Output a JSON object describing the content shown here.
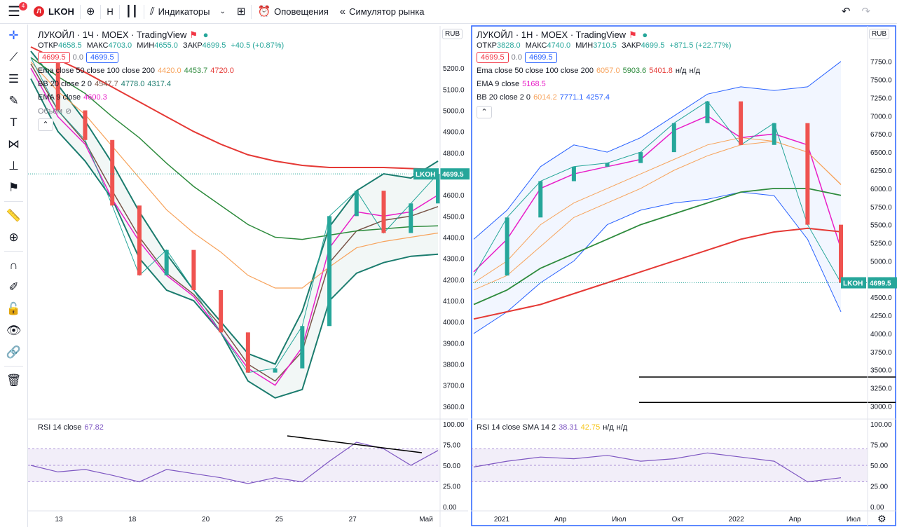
{
  "toolbar": {
    "badge": "4",
    "symbol": "LKOH",
    "symbol_logo": "Л",
    "interval": "Н",
    "indicators": "Индикаторы",
    "alerts": "Оповещения",
    "replay": "Симулятор рынка",
    "icons": [
      "burger-icon",
      "plus-circle-icon",
      "candles-icon",
      "indicators-icon",
      "grid-icon",
      "alarm-icon",
      "replay-icon",
      "undo-icon",
      "redo-icon"
    ]
  },
  "left_tools": [
    "crosshair-icon",
    "trendline-icon",
    "fib-icon",
    "brush-icon",
    "text-icon",
    "pattern-icon",
    "measure-icon",
    "flag-icon",
    "ruler-icon",
    "zoom-icon",
    "magnet-icon",
    "lock-drawings-icon",
    "lock-icon",
    "eye-icon",
    "link-icon",
    "trash-icon"
  ],
  "chart_data": [
    {
      "type": "line",
      "title": "ЛУКОЙЛ · 1Ч · MOEX · TradingView",
      "currency": "RUB",
      "ohlc": {
        "o_label": "ОТКР",
        "o": "4658.5",
        "h_label": "МАКС",
        "h": "4703.0",
        "l_label": "МИН",
        "l": "4655.0",
        "c_label": "ЗАКР",
        "c": "4699.5",
        "chg": "+40.5 (+0.87%)"
      },
      "bid": "4699.5",
      "spread": "0.0",
      "ask": "4699.5",
      "indicators": [
        {
          "label": "Ema close 50 close 100 close 200",
          "values": [
            "4420.0",
            "4453.7",
            "4720.0"
          ],
          "colors": [
            "#f7a35c",
            "#2e8b3d",
            "#e53935"
          ]
        },
        {
          "label": "BB 20 close 2 0",
          "values": [
            "4547.7",
            "4778.0",
            "4317.4"
          ],
          "colors": [
            "#795548",
            "#1b7c6e",
            "#1b7c6e"
          ]
        },
        {
          "label": "EMA 9 close",
          "values": [
            "4600.3"
          ],
          "colors": [
            "#e91ec8"
          ]
        }
      ],
      "volume_label": "Объём",
      "ticker": "LKOH",
      "last": "4699.5",
      "ylim": [
        3550,
        5300
      ],
      "y_ticks": [
        "5200.0",
        "5100.0",
        "5000.0",
        "4900.0",
        "4800.0",
        "4700.0",
        "4600.0",
        "4500.0",
        "4400.0",
        "4300.0",
        "4200.0",
        "4100.0",
        "4000.0",
        "3900.0",
        "3800.0",
        "3700.0",
        "3600.0"
      ],
      "x_ticks": [
        "13",
        "18",
        "20",
        "25",
        "27",
        "Май"
      ],
      "series": [
        {
          "name": "BB upper",
          "values": [
            5280,
            5120,
            4950,
            4750,
            4520,
            4320,
            4150,
            4000,
            3850,
            3800,
            4050,
            4450,
            4620,
            4700,
            4680,
            4760
          ]
        },
        {
          "name": "BB lower",
          "values": [
            5150,
            4900,
            4760,
            4580,
            4300,
            4150,
            4100,
            3950,
            3720,
            3640,
            3680,
            4100,
            4230,
            4280,
            4310,
            4320
          ]
        },
        {
          "name": "BB basis",
          "values": [
            5220,
            5000,
            4850,
            4620,
            4400,
            4230,
            4130,
            3980,
            3800,
            3720,
            3860,
            4280,
            4430,
            4480,
            4500,
            4545
          ]
        },
        {
          "name": "EMA 9",
          "values": [
            5200,
            4970,
            4840,
            4580,
            4380,
            4220,
            4120,
            3950,
            3780,
            3700,
            3880,
            4350,
            4520,
            4500,
            4520,
            4600
          ]
        },
        {
          "name": "EMA 50",
          "values": [
            5230,
            5090,
            4980,
            4830,
            4680,
            4530,
            4420,
            4330,
            4220,
            4160,
            4160,
            4260,
            4350,
            4380,
            4400,
            4420
          ]
        },
        {
          "name": "EMA 100",
          "values": [
            5250,
            5160,
            5080,
            4970,
            4870,
            4750,
            4640,
            4550,
            4460,
            4400,
            4390,
            4410,
            4430,
            4440,
            4450,
            4454
          ]
        },
        {
          "name": "EMA 200",
          "values": [
            5300,
            5240,
            5180,
            5110,
            5040,
            4970,
            4900,
            4840,
            4790,
            4760,
            4740,
            4730,
            4730,
            4730,
            4725,
            4720
          ]
        },
        {
          "name": "Price",
          "values": [
            5250,
            5000,
            4860,
            4550,
            4220,
            4340,
            4150,
            3950,
            3760,
            3780,
            3980,
            4500,
            4620,
            4420,
            4560,
            4700
          ]
        }
      ],
      "rsi": {
        "label": "RSI 14 close",
        "value": "67.82",
        "ylim": [
          0,
          100
        ],
        "ticks": [
          "100.00",
          "75.00",
          "50.00",
          "25.00",
          "0.00"
        ],
        "values": [
          50,
          42,
          45,
          38,
          30,
          45,
          40,
          35,
          28,
          35,
          30,
          55,
          78,
          70,
          50,
          68
        ]
      }
    },
    {
      "type": "line",
      "title": "ЛУКОЙЛ · 1Н · MOEX · TradingView",
      "currency": "RUB",
      "ohlc": {
        "o_label": "ОТКР",
        "o": "3828.0",
        "h_label": "МАКС",
        "h": "4740.0",
        "l_label": "МИН",
        "l": "3710.5",
        "c_label": "ЗАКР",
        "c": "4699.5",
        "chg": "+871.5 (+22.77%)"
      },
      "bid": "4699.5",
      "spread": "0.0",
      "ask": "4699.5",
      "indicators": [
        {
          "label": "Ema close 50 close 100 close 200",
          "values": [
            "6057.0",
            "5903.6",
            "5401.8",
            "н/д",
            "н/д"
          ],
          "colors": [
            "#f7a35c",
            "#2e8b3d",
            "#e53935",
            "#131722",
            "#131722"
          ]
        },
        {
          "label": "EMA 9 close",
          "values": [
            "5168.5"
          ],
          "colors": [
            "#e91ec8"
          ]
        },
        {
          "label": "BB 20 close 2 0",
          "values": [
            "6014.2",
            "7771.1",
            "4257.4"
          ],
          "colors": [
            "#f7a35c",
            "#2962ff",
            "#2962ff"
          ]
        }
      ],
      "ticker": "LKOH",
      "last": "4699.5",
      "ylim": [
        2850,
        7950
      ],
      "y_ticks": [
        "7750.0",
        "7500.0",
        "7250.0",
        "7000.0",
        "6750.0",
        "6500.0",
        "6250.0",
        "6000.0",
        "5750.0",
        "5500.0",
        "5250.0",
        "5000.0",
        "4750.0",
        "4500.0",
        "4250.0",
        "4000.0",
        "3750.0",
        "3500.0",
        "3250.0",
        "3000.0"
      ],
      "x_ticks": [
        "2021",
        "Апр",
        "Июл",
        "Окт",
        "2022",
        "Апр",
        "Июл"
      ],
      "series": [
        {
          "name": "BB upper",
          "values": [
            5300,
            5700,
            6300,
            6600,
            6500,
            6700,
            7000,
            7300,
            7400,
            7350,
            7400,
            7750
          ]
        },
        {
          "name": "BB lower",
          "values": [
            4000,
            4300,
            4700,
            5000,
            5500,
            5700,
            5800,
            5850,
            5950,
            5900,
            5300,
            4300
          ]
        },
        {
          "name": "BB basis",
          "values": [
            4700,
            5000,
            5500,
            5800,
            6000,
            6200,
            6400,
            6600,
            6700,
            6650,
            6500,
            6050
          ]
        },
        {
          "name": "EMA 9",
          "values": [
            4850,
            5300,
            6000,
            6200,
            6300,
            6400,
            6800,
            7000,
            6700,
            6750,
            6600,
            5170
          ]
        },
        {
          "name": "EMA 50",
          "values": [
            4600,
            4800,
            5200,
            5600,
            5800,
            6000,
            6250,
            6450,
            6600,
            6650,
            6500,
            6057
          ]
        },
        {
          "name": "EMA 100",
          "values": [
            4400,
            4600,
            4900,
            5100,
            5300,
            5500,
            5650,
            5800,
            5950,
            6000,
            6000,
            5904
          ]
        },
        {
          "name": "EMA 200",
          "values": [
            4200,
            4300,
            4400,
            4550,
            4700,
            4850,
            5000,
            5150,
            5300,
            5400,
            5450,
            5402
          ]
        },
        {
          "name": "Price",
          "values": [
            4800,
            5600,
            6100,
            6300,
            6350,
            6500,
            6900,
            7200,
            6600,
            6900,
            5500,
            4700
          ]
        }
      ],
      "levels": [
        3400,
        3050
      ],
      "trendline_levels": [],
      "rsi": {
        "label": "RSI 14 close SMA 14 2",
        "value": "38.31",
        "sma": "42.75",
        "na1": "н/д",
        "na2": "н/д",
        "ylim": [
          0,
          100
        ],
        "ticks": [
          "100.00",
          "75.00",
          "50.00",
          "25.00",
          "0.00"
        ],
        "values": [
          48,
          55,
          60,
          58,
          62,
          55,
          58,
          65,
          60,
          55,
          30,
          35
        ]
      }
    }
  ]
}
